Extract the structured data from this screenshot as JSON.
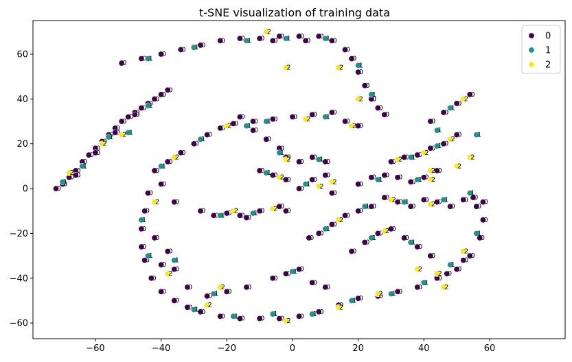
{
  "chart_data": {
    "type": "scatter",
    "title": "t-SNE visualization of training data",
    "xlabel": "",
    "ylabel": "",
    "xlim": [
      -79,
      83
    ],
    "ylim": [
      -67,
      75
    ],
    "xticks": [
      -60,
      -40,
      -20,
      0,
      20,
      40,
      60
    ],
    "yticks": [
      -60,
      -40,
      -20,
      0,
      20,
      40,
      60
    ],
    "grid": false,
    "legend_position": "top-right",
    "legend": [
      {
        "label": "0",
        "color": "#440154"
      },
      {
        "label": "1",
        "color": "#21918c"
      },
      {
        "label": "2",
        "color": "#fde725"
      }
    ],
    "point_text_labels": true,
    "series": [
      {
        "name": "0",
        "color": "#440154",
        "points": [
          [
            -72,
            0
          ],
          [
            -70,
            2
          ],
          [
            -68,
            5
          ],
          [
            -66,
            8
          ],
          [
            -64,
            12
          ],
          [
            -62,
            15
          ],
          [
            -60,
            18
          ],
          [
            -58,
            21
          ],
          [
            -56,
            24
          ],
          [
            -54,
            27
          ],
          [
            -52,
            30
          ],
          [
            -50,
            32
          ],
          [
            -48,
            34
          ],
          [
            -46,
            36
          ],
          [
            -44,
            38
          ],
          [
            -42,
            40
          ],
          [
            -40,
            42
          ],
          [
            -38,
            44
          ],
          [
            -66,
            6
          ],
          [
            -60,
            16
          ],
          [
            -54,
            25
          ],
          [
            -48,
            33
          ],
          [
            -44,
            -2
          ],
          [
            -45,
            -10
          ],
          [
            -46,
            -18
          ],
          [
            -46,
            -26
          ],
          [
            -45,
            -32
          ],
          [
            -43,
            -40
          ],
          [
            -40,
            -46
          ],
          [
            -36,
            -50
          ],
          [
            -32,
            -53
          ],
          [
            -28,
            -55
          ],
          [
            -22,
            -57
          ],
          [
            -16,
            -58
          ],
          [
            -10,
            -58
          ],
          [
            -4,
            -58
          ],
          [
            2,
            -57
          ],
          [
            8,
            -55
          ],
          [
            14,
            -52
          ],
          [
            20,
            -49
          ],
          [
            26,
            -48
          ],
          [
            32,
            -46
          ],
          [
            38,
            -44
          ],
          [
            44,
            -40
          ],
          [
            50,
            -36
          ],
          [
            54,
            -30
          ],
          [
            57,
            -22
          ],
          [
            58,
            -14
          ],
          [
            58,
            -6
          ],
          [
            56,
            -8
          ],
          [
            52,
            -32
          ],
          [
            47,
            -38
          ],
          [
            -42,
            8
          ],
          [
            -38,
            12
          ],
          [
            -34,
            16
          ],
          [
            -30,
            20
          ],
          [
            -26,
            24
          ],
          [
            -22,
            27
          ],
          [
            -18,
            29
          ],
          [
            -12,
            30
          ],
          [
            -6,
            31
          ],
          [
            0,
            32
          ],
          [
            6,
            33
          ],
          [
            12,
            34
          ],
          [
            16,
            30
          ],
          [
            20,
            28
          ],
          [
            -40,
            2
          ],
          [
            -36,
            -6
          ],
          [
            -42,
            -22
          ],
          [
            -40,
            -34
          ],
          [
            -28,
            -10
          ],
          [
            -24,
            -12
          ],
          [
            -20,
            -11
          ],
          [
            -16,
            -12
          ],
          [
            -14,
            -13
          ],
          [
            -10,
            -10
          ],
          [
            -4,
            -8
          ],
          [
            -2,
            -10
          ],
          [
            5,
            -22
          ],
          [
            8,
            -20
          ],
          [
            12,
            -16
          ],
          [
            16,
            -12
          ],
          [
            20,
            -10
          ],
          [
            24,
            -8
          ],
          [
            28,
            -4
          ],
          [
            32,
            -6
          ],
          [
            36,
            -8
          ],
          [
            40,
            -5
          ],
          [
            44,
            -6
          ],
          [
            48,
            -8
          ],
          [
            52,
            -5
          ],
          [
            55,
            -4
          ],
          [
            18,
            -28
          ],
          [
            22,
            -24
          ],
          [
            26,
            -20
          ],
          [
            30,
            -18
          ],
          [
            34,
            -22
          ],
          [
            38,
            -26
          ],
          [
            42,
            -30
          ],
          [
            20,
            2
          ],
          [
            24,
            5
          ],
          [
            28,
            6
          ],
          [
            32,
            5
          ],
          [
            36,
            3
          ],
          [
            40,
            5
          ],
          [
            44,
            8
          ],
          [
            30,
            12
          ],
          [
            34,
            14
          ],
          [
            38,
            15
          ],
          [
            42,
            18
          ],
          [
            46,
            20
          ],
          [
            50,
            24
          ],
          [
            42,
            30
          ],
          [
            46,
            34
          ],
          [
            50,
            38
          ],
          [
            54,
            42
          ],
          [
            -16,
            32
          ],
          [
            -12,
            26
          ],
          [
            -8,
            22
          ],
          [
            -4,
            18
          ],
          [
            -2,
            14
          ],
          [
            2,
            12
          ],
          [
            6,
            14
          ],
          [
            10,
            12
          ],
          [
            -10,
            8
          ],
          [
            -6,
            6
          ],
          [
            -2,
            4
          ],
          [
            2,
            0
          ],
          [
            6,
            4
          ],
          [
            10,
            6
          ],
          [
            12,
            -2
          ],
          [
            -52,
            56
          ],
          [
            -46,
            58
          ],
          [
            -40,
            60
          ],
          [
            -34,
            62
          ],
          [
            -28,
            64
          ],
          [
            -22,
            66
          ],
          [
            -16,
            67
          ],
          [
            -10,
            67
          ],
          [
            -4,
            68
          ],
          [
            2,
            68
          ],
          [
            8,
            68
          ],
          [
            12,
            66
          ],
          [
            16,
            62
          ],
          [
            18,
            58
          ],
          [
            20,
            52
          ],
          [
            22,
            46
          ],
          [
            24,
            40
          ],
          [
            26,
            36
          ],
          [
            28,
            33
          ],
          [
            4,
            66
          ],
          [
            -6,
            66
          ],
          [
            -6,
            -40
          ],
          [
            -2,
            -38
          ],
          [
            2,
            -36
          ],
          [
            6,
            -42
          ],
          [
            10,
            -44
          ],
          [
            -14,
            -44
          ],
          [
            -20,
            -46
          ],
          [
            -26,
            -48
          ],
          [
            -32,
            -44
          ],
          [
            -36,
            -36
          ],
          [
            -38,
            -28
          ]
        ]
      },
      {
        "name": "1",
        "color": "#21918c",
        "points": [
          [
            -64,
            10
          ],
          [
            -56,
            23
          ],
          [
            -50,
            25
          ],
          [
            -44,
            37
          ],
          [
            -46,
            -14
          ],
          [
            -44,
            -30
          ],
          [
            -30,
            -54
          ],
          [
            -18,
            -57
          ],
          [
            -6,
            -56
          ],
          [
            6,
            -56
          ],
          [
            18,
            -50
          ],
          [
            30,
            -47
          ],
          [
            40,
            -42
          ],
          [
            48,
            -34
          ],
          [
            56,
            -20
          ],
          [
            -40,
            10
          ],
          [
            -28,
            22
          ],
          [
            -8,
            30
          ],
          [
            10,
            32
          ],
          [
            -22,
            -12
          ],
          [
            -12,
            -11
          ],
          [
            10,
            -18
          ],
          [
            22,
            -8
          ],
          [
            34,
            -6
          ],
          [
            46,
            -5
          ],
          [
            24,
            -22
          ],
          [
            36,
            -24
          ],
          [
            26,
            4
          ],
          [
            38,
            4
          ],
          [
            36,
            14
          ],
          [
            44,
            19
          ],
          [
            48,
            36
          ],
          [
            -14,
            28
          ],
          [
            -4,
            16
          ],
          [
            8,
            13
          ],
          [
            -8,
            7
          ],
          [
            4,
            2
          ],
          [
            -44,
            58
          ],
          [
            -30,
            63
          ],
          [
            -14,
            66
          ],
          [
            -2,
            67
          ],
          [
            10,
            67
          ],
          [
            20,
            55
          ],
          [
            24,
            42
          ],
          [
            0,
            -37
          ],
          [
            -24,
            -47
          ],
          [
            -36,
            -32
          ],
          [
            54,
            -2
          ],
          [
            56,
            24
          ],
          [
            44,
            26
          ],
          [
            -70,
            3
          ]
        ]
      },
      {
        "name": "2",
        "color": "#fde725",
        "points": [
          [
            -68,
            7
          ],
          [
            -58,
            20
          ],
          [
            -52,
            24
          ],
          [
            -42,
            -6
          ],
          [
            -38,
            -38
          ],
          [
            -26,
            -52
          ],
          [
            -2,
            -59
          ],
          [
            14,
            -53
          ],
          [
            26,
            -47
          ],
          [
            44,
            -38
          ],
          [
            52,
            -28
          ],
          [
            -36,
            14
          ],
          [
            -20,
            28
          ],
          [
            4,
            31
          ],
          [
            18,
            28
          ],
          [
            -18,
            -10
          ],
          [
            -6,
            -9
          ],
          [
            14,
            -14
          ],
          [
            30,
            -5
          ],
          [
            42,
            -7
          ],
          [
            28,
            -19
          ],
          [
            42,
            4
          ],
          [
            32,
            13
          ],
          [
            40,
            16
          ],
          [
            48,
            22
          ],
          [
            52,
            40
          ],
          [
            -2,
            13
          ],
          [
            12,
            3
          ],
          [
            -4,
            5
          ],
          [
            8,
            1
          ],
          [
            -8,
            70
          ],
          [
            -2,
            54
          ],
          [
            14,
            54
          ],
          [
            20,
            40
          ],
          [
            -22,
            -44
          ],
          [
            46,
            -44
          ],
          [
            38,
            -36
          ],
          [
            54,
            14
          ],
          [
            50,
            10
          ],
          [
            42,
            8
          ]
        ]
      }
    ]
  }
}
